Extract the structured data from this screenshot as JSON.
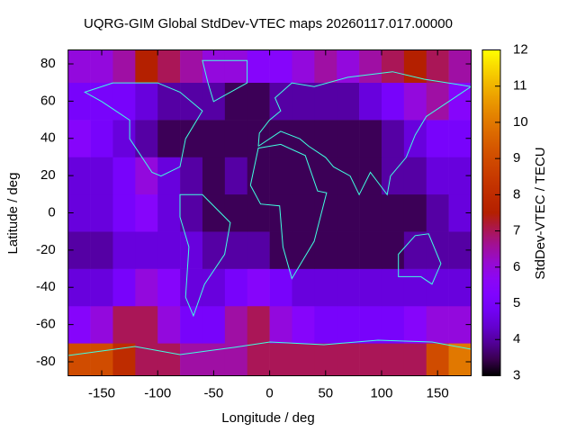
{
  "chart_data": {
    "type": "heatmap",
    "title": "UQRG-GIM Global StdDev-VTEC maps 20260117.017.00000",
    "x_label": "Longitude / deg",
    "y_label": "Latitude / deg",
    "colorbar_label": "StdDev-VTEC / TECU",
    "x_bins": [
      -180,
      -160,
      -140,
      -120,
      -100,
      -80,
      -60,
      -40,
      -20,
      0,
      20,
      40,
      60,
      80,
      100,
      120,
      140,
      160,
      180
    ],
    "y_bins": [
      -87.5,
      -70,
      -50,
      -30,
      -10,
      10,
      30,
      50,
      70,
      87.5
    ],
    "z": [
      [
        9,
        9,
        8,
        7,
        7,
        6.5,
        6.5,
        6.5,
        7,
        7,
        7,
        7,
        7,
        7,
        7,
        7,
        9,
        10
      ],
      [
        5.5,
        6,
        7,
        7,
        6,
        5,
        5,
        6.5,
        7,
        6,
        5.5,
        5,
        5,
        5,
        5,
        5.5,
        6,
        6
      ],
      [
        4.5,
        4.5,
        5,
        6,
        5.5,
        4.5,
        4.5,
        5,
        5.5,
        5,
        4.5,
        4.5,
        4.5,
        4.5,
        4.5,
        4.5,
        4.5,
        4.5
      ],
      [
        4,
        4,
        4.5,
        4.5,
        4.5,
        4.5,
        4,
        4,
        4,
        3.5,
        3.5,
        3.5,
        3.5,
        3.5,
        3.5,
        4,
        4,
        4
      ],
      [
        4.5,
        4.5,
        5,
        5.5,
        4.5,
        4,
        3.5,
        3.5,
        3.5,
        3.5,
        3.5,
        3.5,
        3.5,
        3.5,
        3.5,
        3.5,
        4,
        4.5
      ],
      [
        4.5,
        4.5,
        5,
        6,
        4.5,
        4,
        3.5,
        4,
        3.5,
        3.5,
        3.5,
        3.5,
        3.5,
        3.5,
        4,
        4,
        4.5,
        4.5
      ],
      [
        5.5,
        5,
        4.5,
        4,
        3.5,
        3.5,
        3.5,
        3.5,
        3.5,
        3.5,
        3.5,
        3.5,
        3.5,
        3.5,
        4,
        4.5,
        5,
        5
      ],
      [
        5,
        5,
        5,
        4.5,
        4,
        4,
        4,
        3.5,
        3.5,
        4,
        4,
        4,
        4,
        4.5,
        5,
        6,
        6.5,
        5.5
      ],
      [
        6,
        6,
        6.5,
        7.5,
        7,
        6.5,
        6,
        6,
        5.5,
        5.5,
        6,
        6.5,
        6,
        6.5,
        7,
        7.5,
        7,
        6.5
      ]
    ],
    "xlim": [
      -180,
      180
    ],
    "ylim": [
      -87.5,
      87.5
    ],
    "xticks": [
      -150,
      -100,
      -50,
      0,
      50,
      100,
      150
    ],
    "yticks": [
      -80,
      -60,
      -40,
      -20,
      0,
      20,
      40,
      60,
      80
    ],
    "cblim": [
      3,
      12
    ],
    "cbticks": [
      3,
      4,
      5,
      6,
      7,
      8,
      9,
      10,
      11,
      12
    ]
  }
}
